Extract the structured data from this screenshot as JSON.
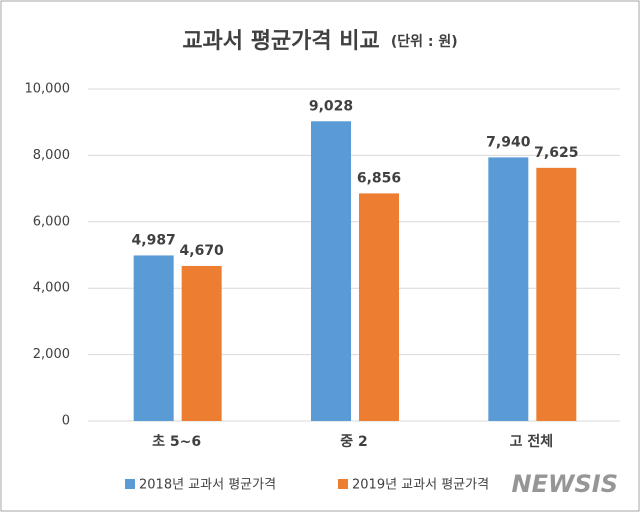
{
  "chart_data": {
    "type": "bar",
    "title": "교과서 평균가격 비교",
    "subtitle": "(단위 : 원)",
    "categories": [
      "초 5~6",
      "중 2",
      "고 전체"
    ],
    "series": [
      {
        "name": "2018년 교과서 평균가격",
        "color": "#5b9bd5",
        "values": [
          4987,
          9028,
          7940
        ],
        "value_labels": [
          "4,987",
          "9,028",
          "7,940"
        ]
      },
      {
        "name": "2019년 교과서 평균가격",
        "color": "#ed7d31",
        "values": [
          4670,
          6856,
          7625
        ],
        "value_labels": [
          "4,670",
          "6,856",
          "7,625"
        ]
      }
    ],
    "ylim": [
      0,
      10000
    ],
    "yticks": [
      0,
      {
        "value": 2000,
        "label": "2,000"
      },
      {
        "value": 4000,
        "label": "4,000"
      },
      {
        "value": 6000,
        "label": "6,000"
      },
      {
        "value": 8000,
        "label": "8,000"
      },
      {
        "value": 10000,
        "label": "10,000"
      }
    ],
    "grid": true,
    "legend": "bottom",
    "watermark": "NEWSIS"
  }
}
